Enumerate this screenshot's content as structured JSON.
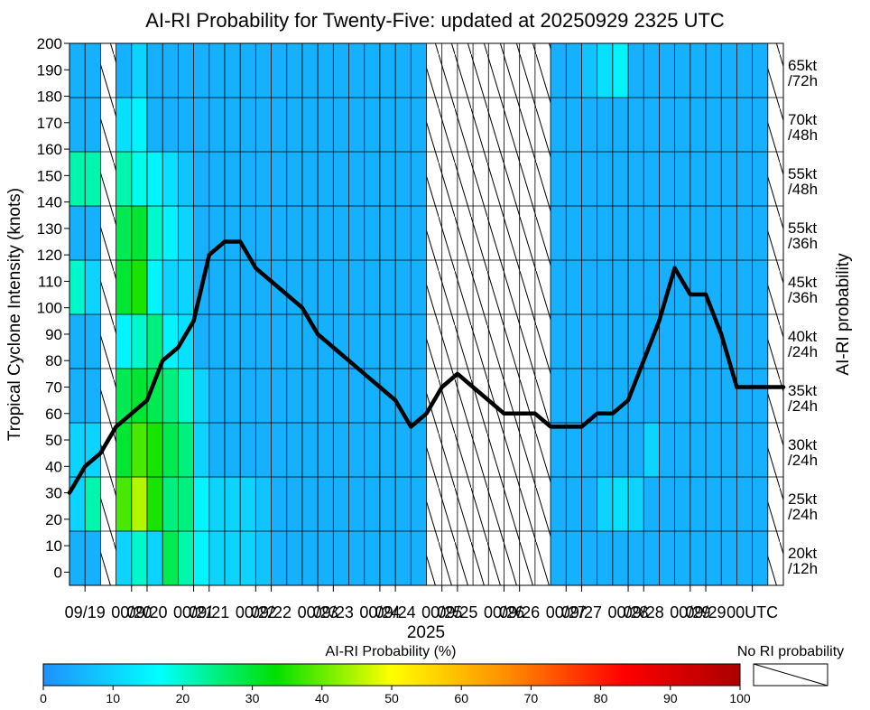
{
  "chart_data": {
    "type": "heatmap",
    "title": "AI-RI Probability for Twenty-Five: updated at 20250929 2325 UTC",
    "ylabel": "Tropical Cyclone Intensity (knots)",
    "right_label": "AI-RI probability",
    "xlabel": "2025",
    "ylim": [
      -5,
      200
    ],
    "y_ticks": [
      0,
      10,
      20,
      30,
      40,
      50,
      60,
      70,
      80,
      90,
      100,
      110,
      120,
      130,
      140,
      150,
      160,
      170,
      180,
      190,
      200
    ],
    "x_ticks": [
      "09/19",
      "00/20",
      "09/20",
      "00/21",
      "09/21",
      "00/22",
      "09/22",
      "00/23",
      "09/23",
      "00/24",
      "09/24",
      "00/25",
      "09/25",
      "00/26",
      "09/26",
      "00/27",
      "09/27",
      "00/28",
      "09/28",
      "00/29",
      "09/29",
      "00UTC"
    ],
    "x_tick_positions": [
      0.25,
      1.0,
      1.25,
      2.0,
      2.25,
      3.0,
      3.25,
      4.0,
      4.25,
      5.0,
      5.25,
      6.0,
      6.25,
      7.0,
      7.25,
      8.0,
      8.25,
      9.0,
      9.25,
      10.0,
      10.25,
      11.0
    ],
    "x_range": [
      0,
      11.5
    ],
    "time_step": 0.25,
    "bands": [
      {
        "label": "20kt /12h",
        "values": [
          5,
          5,
          null,
          10,
          20,
          10,
          28,
          22,
          15,
          10,
          10,
          10,
          8,
          5,
          5,
          5,
          5,
          5,
          5,
          5,
          5,
          5,
          5,
          null,
          null,
          null,
          null,
          null,
          null,
          null,
          null,
          5,
          5,
          5,
          5,
          5,
          5,
          5,
          5,
          5,
          5,
          5,
          5,
          5,
          5,
          null
        ]
      },
      {
        "label": "25kt /24h",
        "values": [
          10,
          22,
          null,
          38,
          45,
          35,
          25,
          25,
          15,
          10,
          10,
          10,
          8,
          5,
          5,
          5,
          5,
          5,
          5,
          5,
          5,
          5,
          5,
          null,
          null,
          null,
          null,
          null,
          null,
          null,
          null,
          5,
          5,
          5,
          10,
          12,
          10,
          5,
          5,
          5,
          5,
          5,
          5,
          5,
          5,
          null
        ]
      },
      {
        "label": "30kt /24h",
        "values": [
          10,
          10,
          null,
          30,
          38,
          35,
          28,
          25,
          10,
          5,
          5,
          5,
          5,
          5,
          5,
          5,
          5,
          5,
          5,
          5,
          5,
          5,
          5,
          null,
          null,
          null,
          null,
          null,
          null,
          null,
          null,
          5,
          5,
          5,
          5,
          5,
          5,
          10,
          5,
          5,
          5,
          5,
          5,
          5,
          5,
          null
        ]
      },
      {
        "label": "35kt /24h",
        "values": [
          5,
          5,
          null,
          28,
          30,
          28,
          25,
          20,
          10,
          5,
          5,
          5,
          5,
          5,
          5,
          5,
          5,
          5,
          5,
          5,
          5,
          5,
          5,
          null,
          null,
          null,
          null,
          null,
          null,
          null,
          null,
          5,
          5,
          5,
          5,
          5,
          5,
          5,
          5,
          5,
          5,
          5,
          5,
          5,
          5,
          null
        ]
      },
      {
        "label": "40kt /24h",
        "values": [
          5,
          5,
          null,
          15,
          20,
          25,
          15,
          12,
          5,
          5,
          5,
          5,
          5,
          5,
          5,
          5,
          5,
          5,
          5,
          5,
          5,
          5,
          5,
          null,
          null,
          null,
          null,
          null,
          null,
          null,
          null,
          5,
          5,
          5,
          5,
          5,
          5,
          5,
          5,
          5,
          5,
          5,
          5,
          5,
          5,
          null
        ]
      },
      {
        "label": "45kt /36h",
        "values": [
          20,
          10,
          null,
          30,
          35,
          15,
          10,
          10,
          5,
          5,
          5,
          5,
          5,
          5,
          5,
          5,
          5,
          5,
          5,
          5,
          5,
          5,
          5,
          null,
          null,
          null,
          null,
          null,
          null,
          null,
          null,
          5,
          5,
          5,
          5,
          5,
          5,
          5,
          5,
          5,
          5,
          5,
          5,
          5,
          5,
          null
        ]
      },
      {
        "label": "55kt /36h",
        "values": [
          5,
          5,
          null,
          28,
          30,
          20,
          15,
          10,
          5,
          5,
          5,
          5,
          5,
          5,
          5,
          5,
          5,
          5,
          5,
          5,
          5,
          5,
          5,
          null,
          null,
          null,
          null,
          null,
          null,
          null,
          null,
          5,
          5,
          5,
          5,
          5,
          5,
          5,
          5,
          5,
          5,
          5,
          5,
          5,
          5,
          null
        ]
      },
      {
        "label": "55kt /48h",
        "values": [
          22,
          22,
          null,
          22,
          18,
          15,
          12,
          8,
          5,
          5,
          5,
          5,
          5,
          5,
          5,
          5,
          5,
          5,
          5,
          5,
          5,
          5,
          5,
          null,
          null,
          null,
          null,
          null,
          null,
          null,
          null,
          5,
          5,
          5,
          5,
          5,
          5,
          5,
          5,
          5,
          5,
          5,
          5,
          5,
          5,
          null
        ]
      },
      {
        "label": "70kt /48h",
        "values": [
          5,
          5,
          null,
          12,
          15,
          5,
          5,
          5,
          5,
          5,
          5,
          5,
          5,
          5,
          5,
          5,
          5,
          5,
          5,
          5,
          5,
          5,
          5,
          null,
          null,
          null,
          null,
          null,
          null,
          null,
          null,
          5,
          5,
          5,
          5,
          5,
          5,
          5,
          5,
          5,
          5,
          5,
          5,
          5,
          5,
          null
        ]
      },
      {
        "label": "65kt /72h",
        "values": [
          5,
          5,
          null,
          5,
          10,
          5,
          5,
          5,
          5,
          5,
          5,
          5,
          5,
          5,
          5,
          5,
          5,
          5,
          5,
          5,
          5,
          5,
          5,
          null,
          null,
          null,
          null,
          null,
          null,
          null,
          null,
          5,
          5,
          8,
          12,
          15,
          5,
          5,
          5,
          5,
          5,
          5,
          5,
          5,
          5,
          null
        ]
      }
    ],
    "intensity_line": {
      "name": "Tropical Cyclone Intensity",
      "x": [
        0.0,
        0.25,
        0.5,
        0.75,
        1.0,
        1.25,
        1.5,
        1.75,
        2.0,
        2.25,
        2.5,
        2.75,
        3.0,
        3.25,
        3.5,
        3.75,
        4.0,
        4.25,
        4.5,
        4.75,
        5.0,
        5.25,
        5.5,
        5.75,
        6.0,
        6.25,
        6.5,
        6.75,
        7.0,
        7.25,
        7.5,
        7.75,
        8.0,
        8.25,
        8.5,
        8.75,
        9.0,
        9.25,
        9.5,
        9.75,
        10.0,
        10.25,
        10.5,
        10.75,
        11.0,
        11.25,
        11.5
      ],
      "y": [
        30,
        40,
        45,
        55,
        60,
        65,
        80,
        85,
        95,
        120,
        125,
        125,
        115,
        110,
        105,
        100,
        90,
        85,
        80,
        75,
        70,
        65,
        55,
        60,
        70,
        75,
        70,
        65,
        60,
        60,
        60,
        55,
        55,
        55,
        60,
        60,
        65,
        80,
        95,
        115,
        105,
        105,
        90,
        70,
        70,
        70,
        70
      ]
    },
    "colorbar": {
      "label": "AI-RI Probability (%)",
      "min": 0,
      "max": 100,
      "ticks": [
        0,
        10,
        20,
        30,
        40,
        50,
        60,
        70,
        80,
        90,
        100
      ],
      "stops": [
        "#1e90ff",
        "#00ffff",
        "#00e000",
        "#ffff00",
        "#ff8c00",
        "#ff0000",
        "#aa0000"
      ]
    },
    "no_ri_label": "No RI probability"
  }
}
